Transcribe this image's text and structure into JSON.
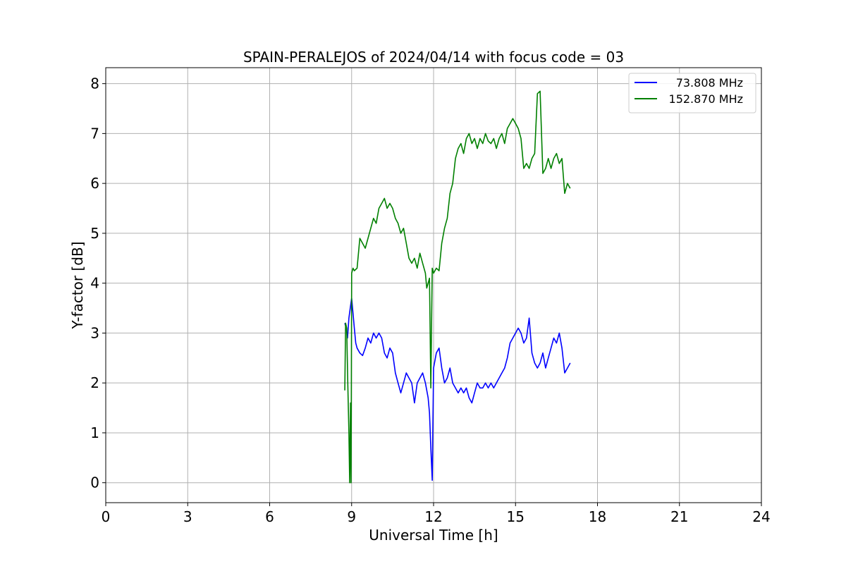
{
  "chart_data": {
    "type": "line",
    "title": "SPAIN-PERALEJOS of 2024/04/14 with focus code = 03",
    "xlabel": "Universal Time [h]",
    "ylabel": "Y-factor [dB]",
    "xlim": [
      0,
      24
    ],
    "ylim": [
      -0.4,
      8.32
    ],
    "xticks": [
      0,
      3,
      6,
      9,
      12,
      15,
      18,
      21,
      24
    ],
    "yticks": [
      0,
      1,
      2,
      3,
      4,
      5,
      6,
      7,
      8
    ],
    "grid": true,
    "legend_position": "top-right",
    "series": [
      {
        "name": "73.808 MHz",
        "color": "#0000ff",
        "x": [
          8.75,
          8.8,
          8.85,
          8.9,
          8.95,
          9.0,
          9.05,
          9.1,
          9.15,
          9.2,
          9.3,
          9.4,
          9.5,
          9.6,
          9.7,
          9.8,
          9.9,
          10.0,
          10.1,
          10.2,
          10.3,
          10.4,
          10.5,
          10.6,
          10.7,
          10.8,
          10.9,
          11.0,
          11.1,
          11.2,
          11.3,
          11.4,
          11.5,
          11.6,
          11.7,
          11.8,
          11.85,
          11.9,
          11.95,
          12.0,
          12.1,
          12.2,
          12.3,
          12.4,
          12.5,
          12.6,
          12.7,
          12.8,
          12.9,
          13.0,
          13.1,
          13.2,
          13.3,
          13.4,
          13.5,
          13.6,
          13.7,
          13.8,
          13.9,
          14.0,
          14.1,
          14.2,
          14.3,
          14.4,
          14.5,
          14.6,
          14.7,
          14.8,
          14.9,
          15.0,
          15.1,
          15.2,
          15.3,
          15.4,
          15.5,
          15.6,
          15.7,
          15.8,
          15.9,
          16.0,
          16.1,
          16.2,
          16.3,
          16.4,
          16.5,
          16.6,
          16.7,
          16.8,
          16.9,
          17.0
        ],
        "values": [
          3.2,
          3.1,
          2.9,
          3.3,
          3.5,
          3.7,
          3.4,
          3.1,
          2.8,
          2.7,
          2.6,
          2.55,
          2.7,
          2.9,
          2.8,
          3.0,
          2.9,
          3.0,
          2.9,
          2.6,
          2.5,
          2.7,
          2.6,
          2.2,
          2.0,
          1.8,
          2.0,
          2.2,
          2.1,
          2.0,
          1.6,
          2.0,
          2.1,
          2.2,
          2.0,
          1.7,
          1.4,
          0.7,
          0.05,
          2.3,
          2.6,
          2.7,
          2.3,
          2.0,
          2.1,
          2.3,
          2.0,
          1.9,
          1.8,
          1.9,
          1.8,
          1.9,
          1.7,
          1.6,
          1.8,
          2.0,
          1.9,
          1.9,
          2.0,
          1.9,
          2.0,
          1.9,
          2.0,
          2.1,
          2.2,
          2.3,
          2.5,
          2.8,
          2.9,
          3.0,
          3.1,
          3.0,
          2.8,
          2.9,
          3.3,
          2.6,
          2.4,
          2.3,
          2.4,
          2.6,
          2.3,
          2.5,
          2.7,
          2.9,
          2.8,
          3.0,
          2.7,
          2.2,
          2.3,
          2.4
        ]
      },
      {
        "name": "152.870 MHz",
        "color": "#008000",
        "x": [
          8.75,
          8.78,
          8.82,
          8.86,
          8.9,
          8.93,
          8.96,
          8.98,
          9.0,
          9.05,
          9.1,
          9.2,
          9.3,
          9.4,
          9.5,
          9.6,
          9.7,
          9.8,
          9.9,
          10.0,
          10.1,
          10.2,
          10.3,
          10.4,
          10.5,
          10.6,
          10.7,
          10.8,
          10.9,
          11.0,
          11.1,
          11.2,
          11.3,
          11.4,
          11.5,
          11.6,
          11.7,
          11.75,
          11.8,
          11.85,
          11.9,
          11.95,
          12.0,
          12.1,
          12.2,
          12.3,
          12.4,
          12.5,
          12.6,
          12.7,
          12.8,
          12.9,
          13.0,
          13.1,
          13.2,
          13.3,
          13.4,
          13.5,
          13.6,
          13.7,
          13.8,
          13.9,
          14.0,
          14.1,
          14.2,
          14.3,
          14.4,
          14.5,
          14.6,
          14.7,
          14.8,
          14.9,
          15.0,
          15.1,
          15.2,
          15.3,
          15.4,
          15.5,
          15.6,
          15.7,
          15.8,
          15.9,
          16.0,
          16.1,
          16.2,
          16.3,
          16.4,
          16.5,
          16.6,
          16.7,
          16.8,
          16.9,
          17.0
        ],
        "values": [
          1.85,
          3.2,
          3.1,
          2.0,
          1.0,
          0.0,
          1.6,
          0.0,
          4.2,
          4.3,
          4.25,
          4.3,
          4.9,
          4.8,
          4.7,
          4.9,
          5.1,
          5.3,
          5.2,
          5.5,
          5.6,
          5.7,
          5.5,
          5.6,
          5.5,
          5.3,
          5.2,
          5.0,
          5.1,
          4.8,
          4.5,
          4.4,
          4.5,
          4.3,
          4.6,
          4.4,
          4.2,
          3.9,
          4.0,
          4.1,
          1.9,
          4.3,
          4.2,
          4.3,
          4.25,
          4.8,
          5.1,
          5.3,
          5.8,
          6.0,
          6.5,
          6.7,
          6.8,
          6.6,
          6.9,
          7.0,
          6.8,
          6.9,
          6.7,
          6.9,
          6.8,
          7.0,
          6.85,
          6.8,
          6.9,
          6.7,
          6.9,
          7.0,
          6.8,
          7.1,
          7.2,
          7.3,
          7.2,
          7.1,
          6.9,
          6.3,
          6.4,
          6.3,
          6.5,
          6.6,
          7.8,
          7.85,
          6.2,
          6.3,
          6.5,
          6.3,
          6.5,
          6.6,
          6.4,
          6.5,
          5.8,
          6.0,
          5.9
        ]
      }
    ]
  }
}
